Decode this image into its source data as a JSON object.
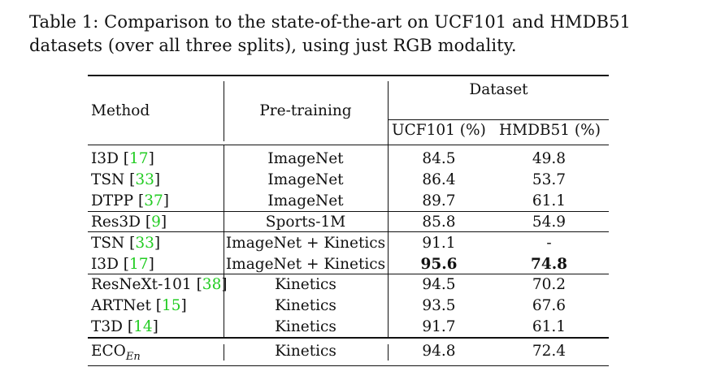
{
  "caption": "Table 1: Comparison to the state-of-the-art on UCF101 and HMDB51 datasets (over all three splits), using just RGB modality.",
  "headers": {
    "method": "Method",
    "pretraining": "Pre-training",
    "dataset": "Dataset",
    "ucf": "UCF101 (%)",
    "hmdb": "HMDB51 (%)"
  },
  "rows": [
    {
      "method": "I3D",
      "ref": "17",
      "pretraining": "ImageNet",
      "ucf": "84.5",
      "hmdb": "49.8"
    },
    {
      "method": "TSN",
      "ref": "33",
      "pretraining": "ImageNet",
      "ucf": "86.4",
      "hmdb": "53.7"
    },
    {
      "method": "DTPP",
      "ref": "37",
      "pretraining": "ImageNet",
      "ucf": "89.7",
      "hmdb": "61.1"
    },
    {
      "method": "Res3D",
      "ref": "9",
      "pretraining": "Sports-1M",
      "ucf": "85.8",
      "hmdb": "54.9"
    },
    {
      "method": "TSN",
      "ref": "33",
      "pretraining": "ImageNet + Kinetics",
      "ucf": "91.1",
      "hmdb": "-"
    },
    {
      "method": "I3D",
      "ref": "17",
      "pretraining": "ImageNet + Kinetics",
      "ucf": "95.6",
      "hmdb": "74.8"
    },
    {
      "method": "ResNeXt-101",
      "ref": "38",
      "pretraining": "Kinetics",
      "ucf": "94.5",
      "hmdb": "70.2"
    },
    {
      "method": "ARTNet",
      "ref": "15",
      "pretraining": "Kinetics",
      "ucf": "93.5",
      "hmdb": "67.6"
    },
    {
      "method": "T3D",
      "ref": "14",
      "pretraining": "Kinetics",
      "ucf": "91.7",
      "hmdb": "61.1"
    }
  ],
  "eco_row": {
    "method": "ECO",
    "method_sub": "En",
    "pretraining": "Kinetics",
    "ucf": "94.8",
    "hmdb": "72.4"
  }
}
